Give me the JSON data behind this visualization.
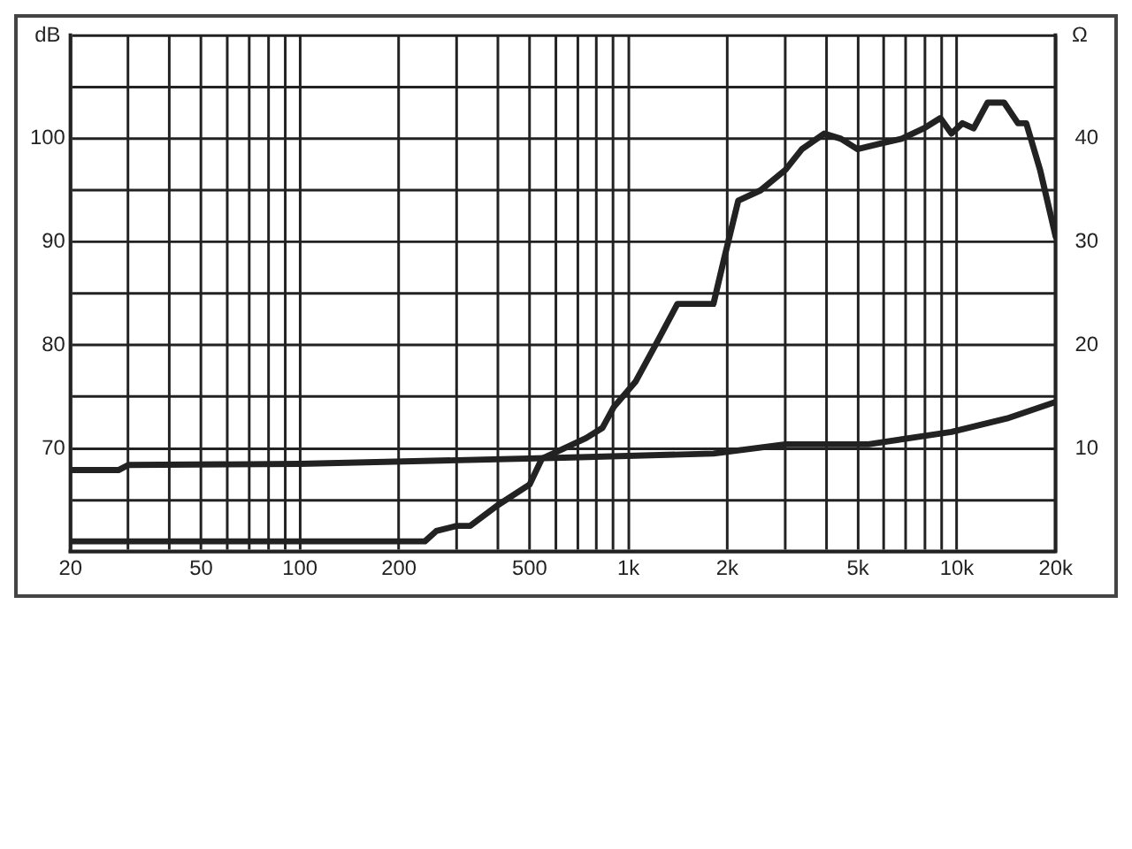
{
  "chart_data": {
    "type": "line",
    "ylabel": "dB",
    "y2label": "Ω",
    "grid": true,
    "legend": false,
    "marker": "none",
    "line_style": "solid",
    "log": "x",
    "xlim": [
      20,
      20000
    ],
    "xticks": [
      20,
      {
        "value": 30,
        "label": null
      },
      {
        "value": 40,
        "label": null
      },
      50,
      {
        "value": 60,
        "label": null
      },
      {
        "value": 70,
        "label": null
      },
      {
        "value": 80,
        "label": null
      },
      {
        "value": 90,
        "label": null
      },
      100,
      200,
      {
        "value": 300,
        "label": null
      },
      {
        "value": 400,
        "label": null
      },
      500,
      {
        "value": 600,
        "label": null
      },
      {
        "value": 700,
        "label": null
      },
      {
        "value": 800,
        "label": null
      },
      {
        "value": 900,
        "label": null
      },
      {
        "value": 1000,
        "label": "1k"
      },
      {
        "value": 2000,
        "label": "2k"
      },
      {
        "value": 3000,
        "label": null
      },
      {
        "value": 4000,
        "label": null
      },
      {
        "value": 5000,
        "label": "5k"
      },
      {
        "value": 6000,
        "label": null
      },
      {
        "value": 7000,
        "label": null
      },
      {
        "value": 8000,
        "label": null
      },
      {
        "value": 9000,
        "label": null
      },
      {
        "value": 10000,
        "label": "10k"
      },
      {
        "value": 20000,
        "label": "20k"
      }
    ],
    "ylim": [
      60,
      110
    ],
    "yticks": [
      {
        "value": 60,
        "label": null
      },
      {
        "value": 65,
        "label": null
      },
      70,
      {
        "value": 75,
        "label": null
      },
      80,
      {
        "value": 85,
        "label": null
      },
      90,
      {
        "value": 95,
        "label": null
      },
      100,
      {
        "value": 105,
        "label": null
      },
      {
        "value": 110,
        "label": null
      }
    ],
    "y2lim": [
      0,
      50
    ],
    "y2ticks": [
      10,
      20,
      30,
      40
    ],
    "series": [
      {
        "color": "#222222",
        "x": [
          20,
          240,
          260,
          300,
          330,
          400,
          500,
          545,
          636,
          743,
          834,
          902,
          1053,
          1208,
          1410,
          1615,
          1815,
          1960,
          2160,
          2525,
          3010,
          3375,
          3945,
          4435,
          4980,
          5810,
          6790,
          7930,
          8910,
          9630,
          10400,
          11250,
          12400,
          13930,
          15350,
          16270,
          17920,
          20000
        ],
        "values": [
          61,
          61,
          62,
          62.5,
          62.5,
          64.5,
          66.5,
          69,
          70,
          71,
          72,
          74,
          76.5,
          80,
          84,
          84,
          84,
          88.5,
          94,
          95,
          97,
          99,
          100.5,
          100,
          99,
          99.5,
          100,
          101,
          102,
          100.5,
          101.5,
          101,
          103.5,
          103.5,
          101.5,
          101.5,
          97,
          90.5
        ]
      },
      {
        "color": "#222222",
        "axis": "y2",
        "x": [
          20,
          28,
          30,
          100,
          636,
          1815,
          3010,
          5380,
          9630,
          14200,
          20000
        ],
        "values": [
          7.9,
          7.9,
          8.4,
          8.5,
          9.1,
          9.5,
          10.4,
          10.4,
          11.6,
          12.9,
          14.5
        ]
      }
    ]
  }
}
